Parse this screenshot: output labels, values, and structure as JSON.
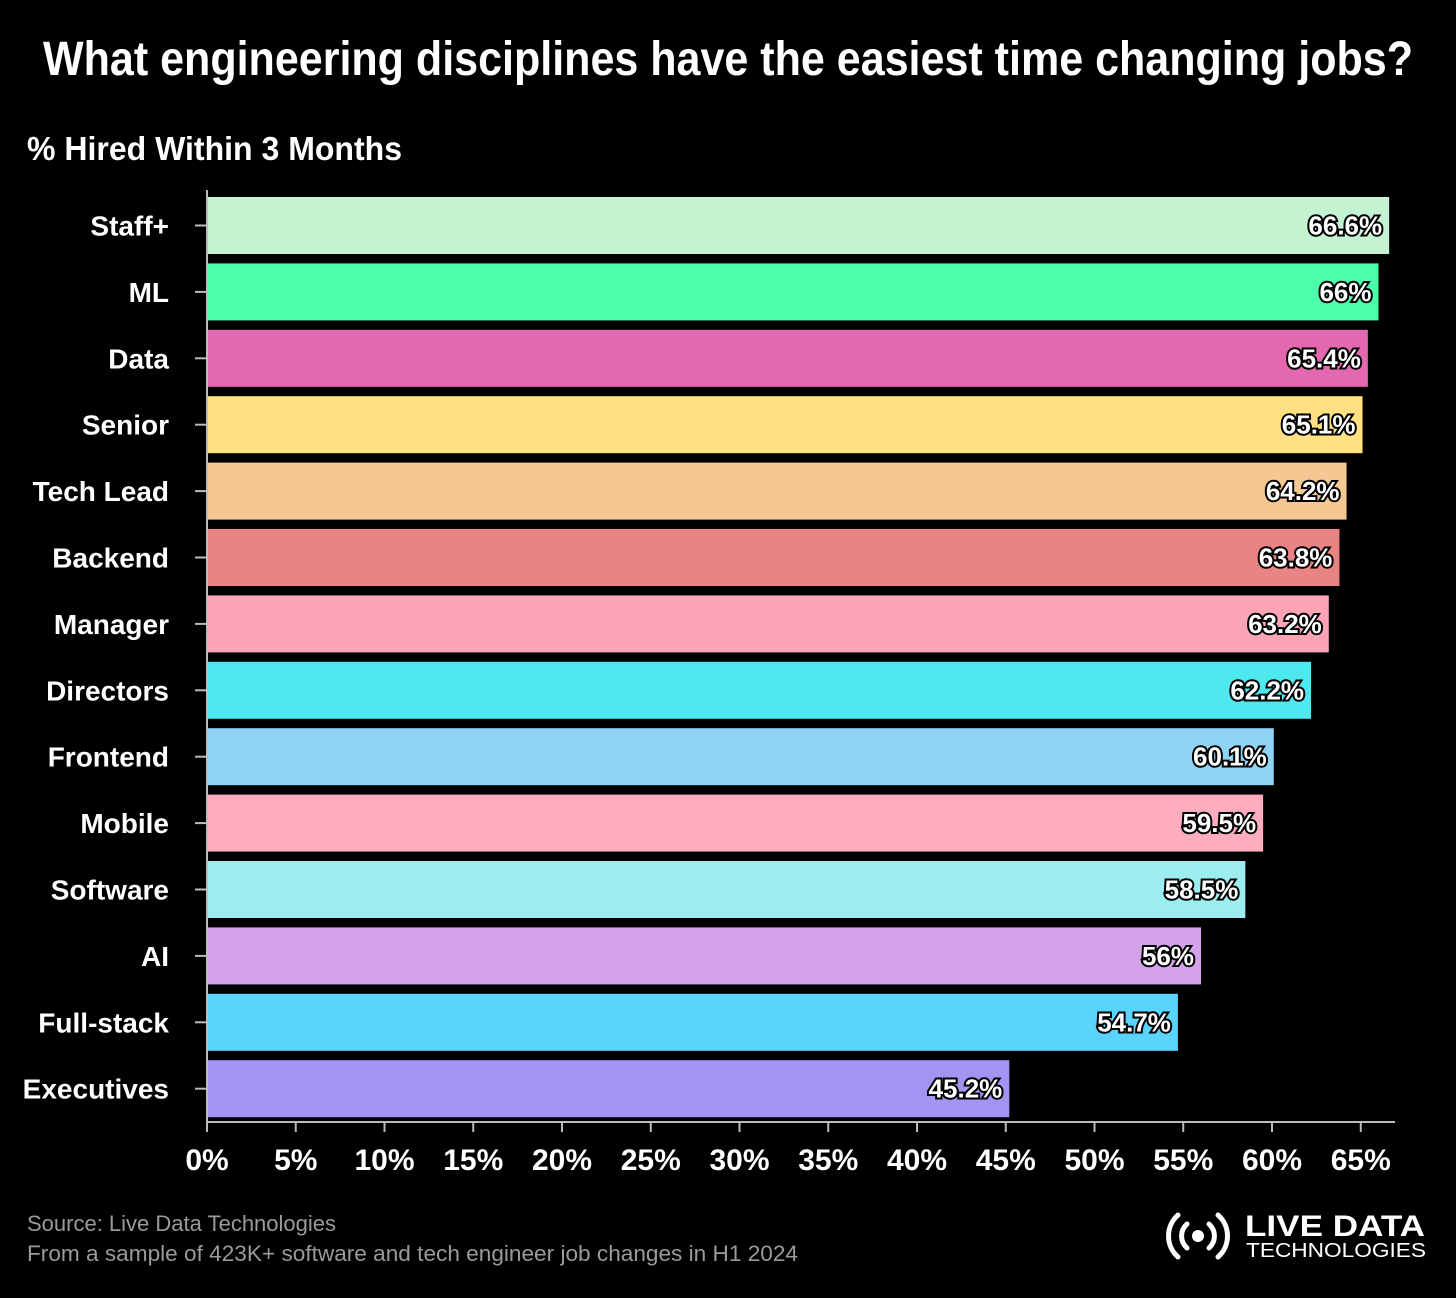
{
  "chart_data": {
    "type": "bar",
    "orientation": "horizontal",
    "title": "What engineering disciplines have the easiest time changing jobs?",
    "subtitle": "% Hired Within 3 Months",
    "categories": [
      "Staff+",
      "ML",
      "Data",
      "Senior",
      "Tech Lead",
      "Backend",
      "Manager",
      "Directors",
      "Frontend",
      "Mobile",
      "Software",
      "AI",
      "Full-stack",
      "Executives"
    ],
    "values": [
      66.6,
      66,
      65.4,
      65.1,
      64.2,
      63.8,
      63.2,
      62.2,
      60.1,
      59.5,
      58.5,
      56,
      54.7,
      45.2
    ],
    "value_labels": [
      "66.6%",
      "66%",
      "65.4%",
      "65.1%",
      "64.2%",
      "63.8%",
      "63.2%",
      "62.2%",
      "60.1%",
      "59.5%",
      "58.5%",
      "56%",
      "54.7%",
      "45.2%"
    ],
    "colors": [
      "#c3f3d0",
      "#4cfda9",
      "#e468b0",
      "#ffe082",
      "#f5c893",
      "#e98484",
      "#fca3b5",
      "#4de9ef",
      "#8fd3f5",
      "#ffacbe",
      "#9bedef",
      "#d3a2e9",
      "#58d4fd",
      "#a194f2"
    ],
    "xlim": [
      0,
      67
    ],
    "xticks": [
      0,
      5,
      10,
      15,
      20,
      25,
      30,
      35,
      40,
      45,
      50,
      55,
      60,
      65
    ],
    "xtick_labels": [
      "0%",
      "5%",
      "10%",
      "15%",
      "20%",
      "25%",
      "30%",
      "35%",
      "40%",
      "45%",
      "50%",
      "55%",
      "60%",
      "65%"
    ],
    "grid": false
  },
  "footer": {
    "source": "Source: Live Data Technologies",
    "note": "From a sample of 423K+ software and tech engineer job changes in H1 2024"
  },
  "logo": {
    "line1": "LIVE DATA",
    "line2": "TECHNOLOGIES"
  }
}
